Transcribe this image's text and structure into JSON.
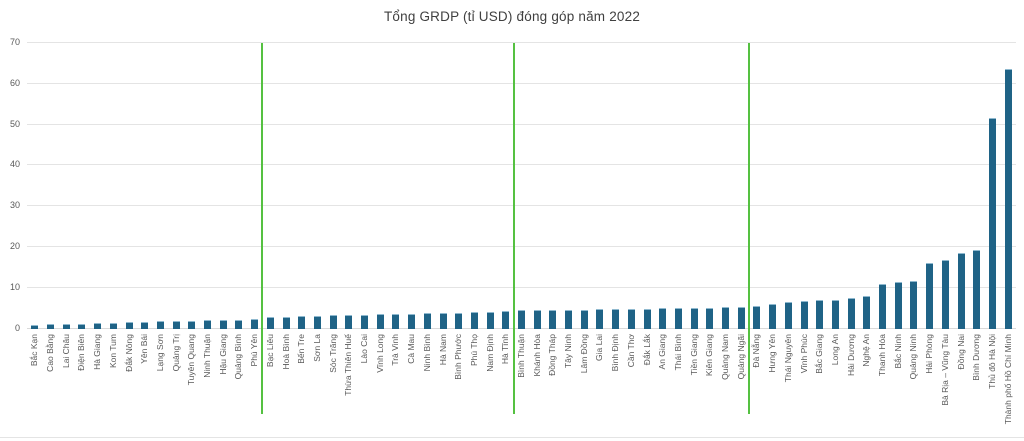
{
  "chart_data": {
    "type": "bar",
    "title": "Tổng GRDP (tỉ USD) đóng góp năm 2022",
    "xlabel": "",
    "ylabel": "",
    "ylim": [
      0,
      70
    ],
    "yticks": [
      0,
      10,
      20,
      30,
      40,
      50,
      60,
      70
    ],
    "grid": true,
    "legend": "none",
    "bar_color": "#1f6386",
    "gridline_color": "#e4e4e4",
    "tick_label_color": "#595959",
    "separator_color": "#55c141",
    "separators_after_index": [
      14,
      30,
      45
    ],
    "categories": [
      "Bắc Kạn",
      "Cao Bằng",
      "Lai Châu",
      "Điện Biên",
      "Hà Giang",
      "Kon Tum",
      "Đắk Nông",
      "Yên Bái",
      "Lạng Sơn",
      "Quảng Trị",
      "Tuyên Quang",
      "Ninh Thuận",
      "Hậu Giang",
      "Quảng Bình",
      "Phú Yên",
      "Bạc Liêu",
      "Hoà Bình",
      "Bến Tre",
      "Sơn La",
      "Sóc Trăng",
      "Thừa Thiên Huế",
      "Lào Cai",
      "Vĩnh Long",
      "Trà Vinh",
      "Cà Mau",
      "Ninh Bình",
      "Hà Nam",
      "Bình Phước",
      "Phú Thọ",
      "Nam Định",
      "Hà Tĩnh",
      "Bình Thuận",
      "Khánh Hòa",
      "Đồng Tháp",
      "Tây Ninh",
      "Lâm Đồng",
      "Gia Lai",
      "Bình Định",
      "Cần Thơ",
      "Đắk Lắk",
      "An Giang",
      "Thái Bình",
      "Tiền Giang",
      "Kiên Giang",
      "Quảng Nam",
      "Quảng Ngãi",
      "Đà Nẵng",
      "Hưng Yên",
      "Thái Nguyên",
      "Vĩnh Phúc",
      "Bắc Giang",
      "Long An",
      "Hải Dương",
      "Nghệ An",
      "Thanh Hóa",
      "Bắc Ninh",
      "Quảng Ninh",
      "Hải Phòng",
      "Bà Rịa – Vũng Tàu",
      "Đồng Nai",
      "Bình Dương",
      "Thủ đô Hà Nội",
      "Thành phố Hồ Chí Minh"
    ],
    "values": [
      0.66,
      0.9,
      1.0,
      1.1,
      1.25,
      1.3,
      1.4,
      1.5,
      1.65,
      1.7,
      1.75,
      1.85,
      1.9,
      2.0,
      2.1,
      2.6,
      2.7,
      2.9,
      3.0,
      3.1,
      3.2,
      3.3,
      3.4,
      3.45,
      3.5,
      3.6,
      3.7,
      3.8,
      3.9,
      4.0,
      4.1,
      4.3,
      4.35,
      4.4,
      4.45,
      4.5,
      4.6,
      4.65,
      4.7,
      4.75,
      4.8,
      4.85,
      4.9,
      5.0,
      5.1,
      5.2,
      5.4,
      5.8,
      6.4,
      6.7,
      6.8,
      6.9,
      7.4,
      7.8,
      10.8,
      11.2,
      11.5,
      16.0,
      16.6,
      18.3,
      19.2,
      51.4,
      63.5
    ]
  }
}
